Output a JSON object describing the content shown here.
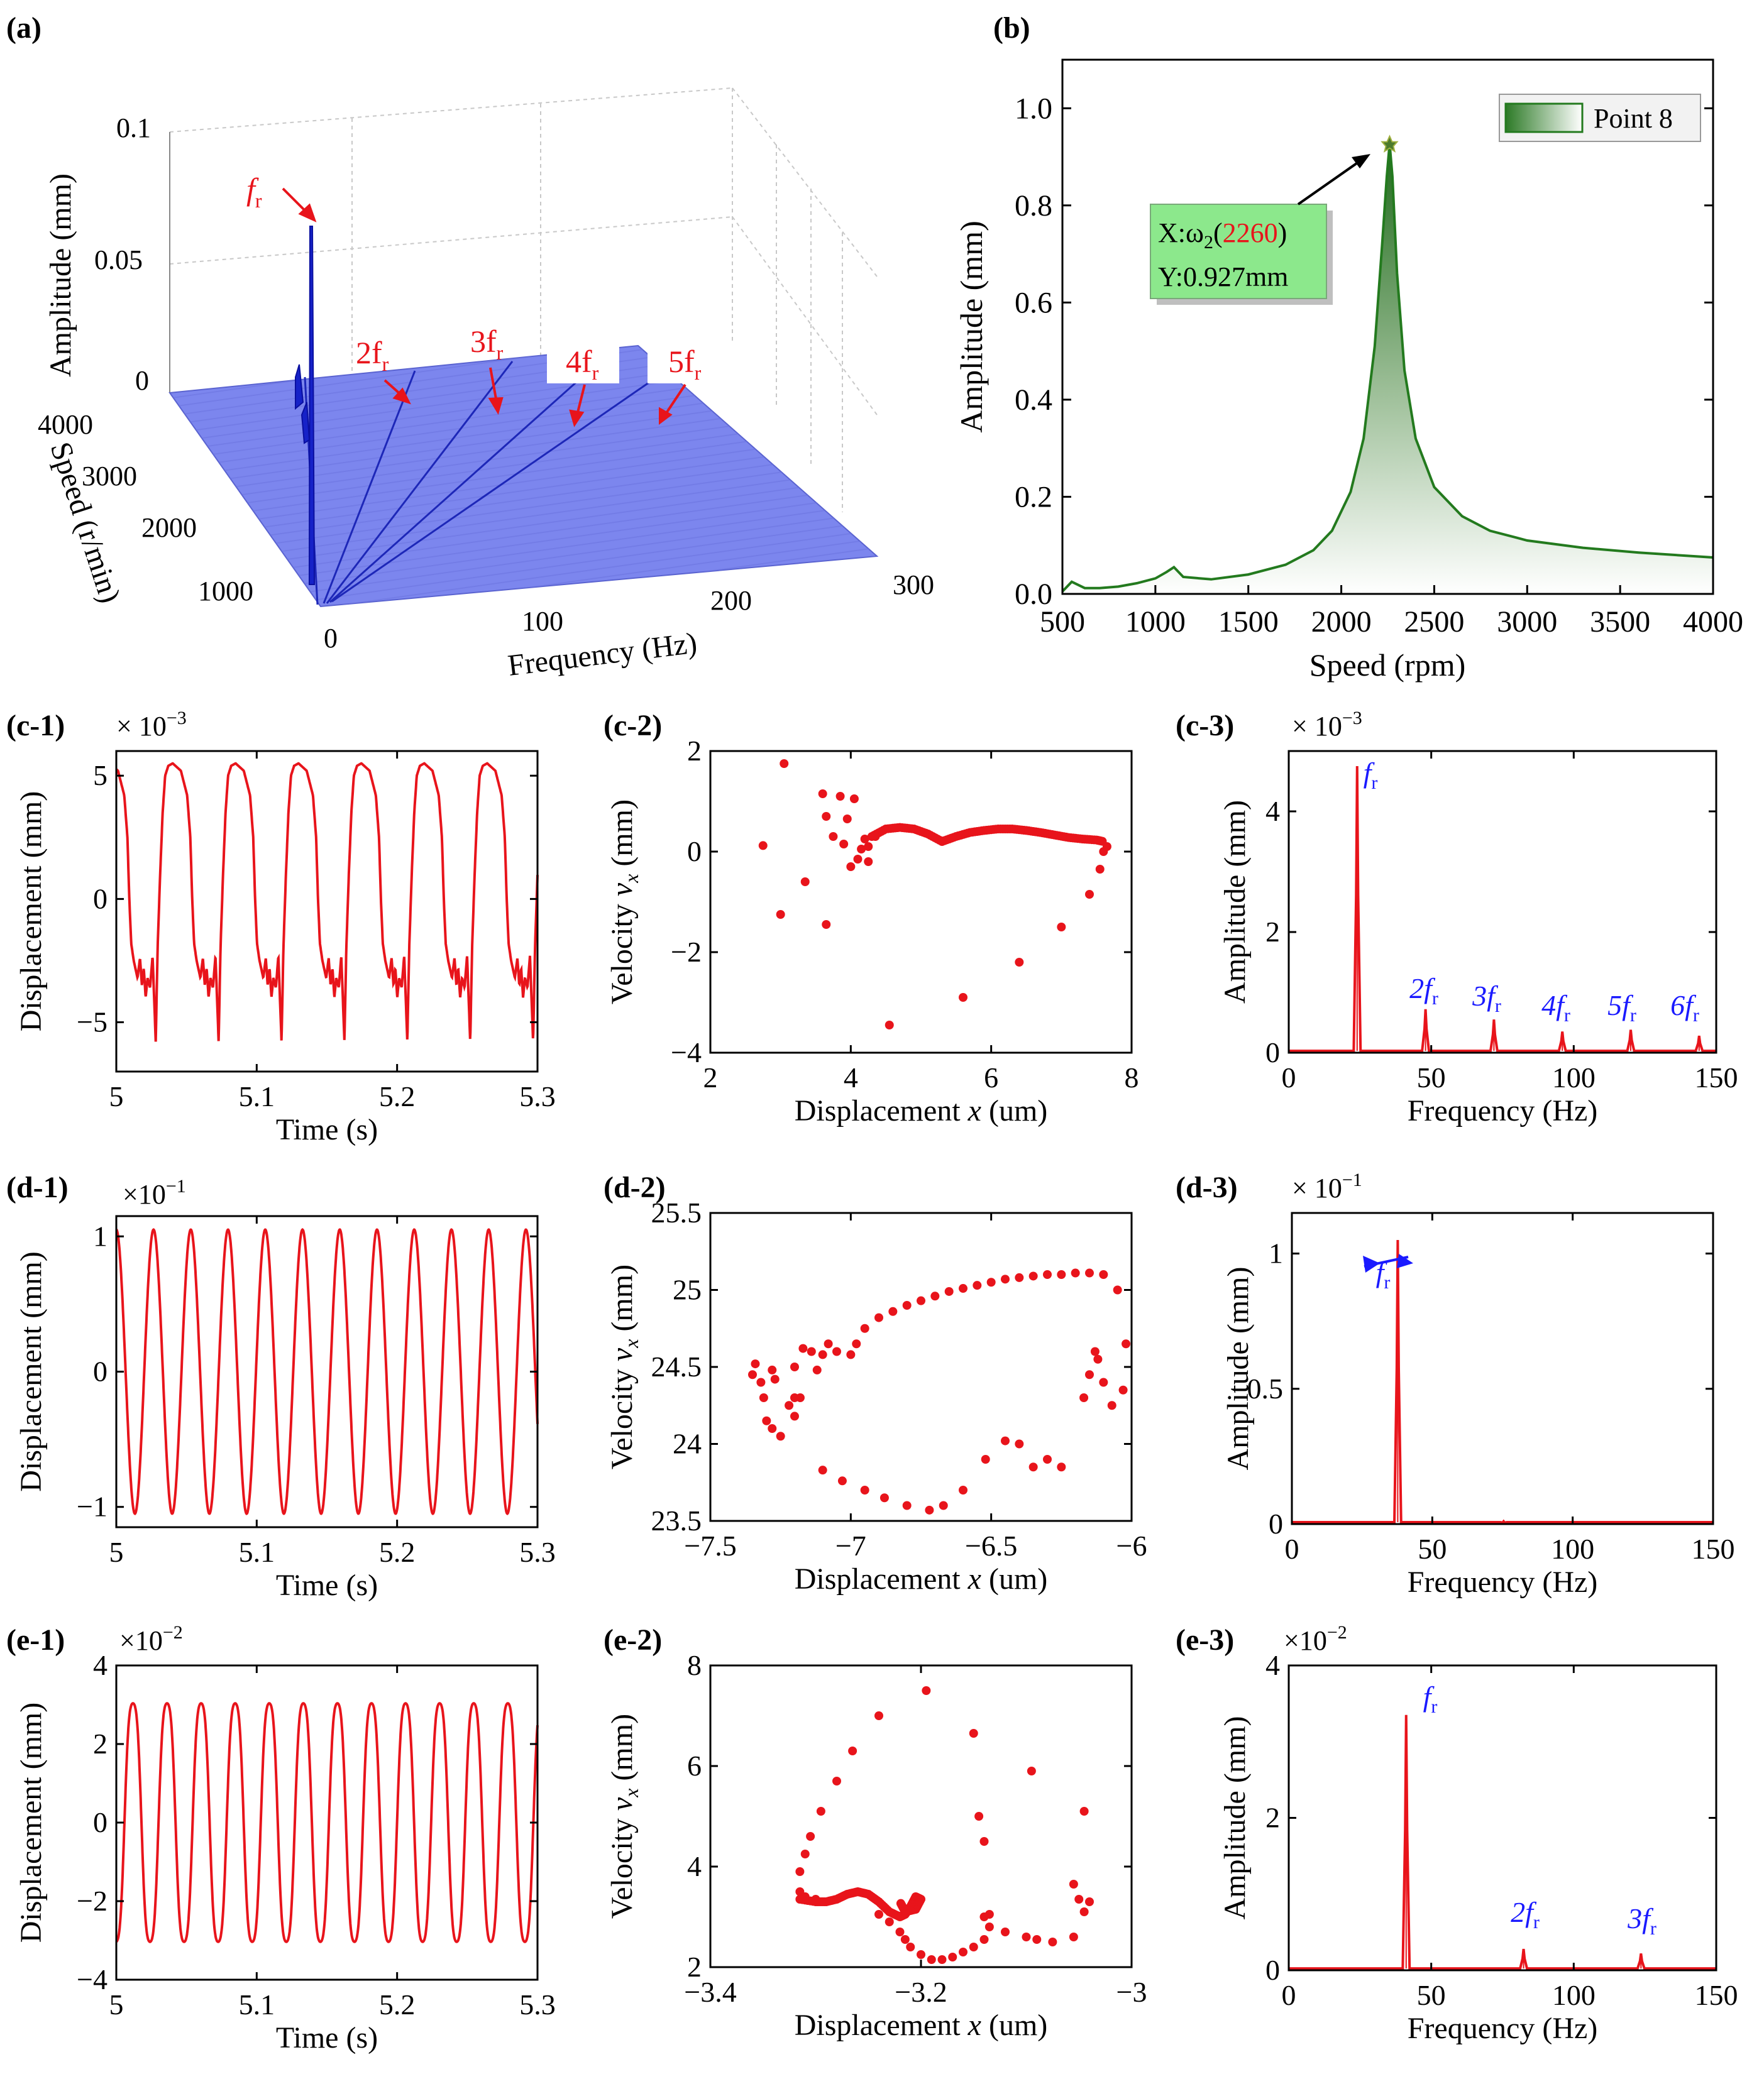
{
  "figure": {
    "panel_labels": {
      "a": "(a)",
      "b": "(b)",
      "c1": "(c-1)",
      "c2": "(c-2)",
      "c3": "(c-3)",
      "d1": "(d-1)",
      "d2": "(d-2)",
      "d3": "(d-3)",
      "e1": "(e-1)",
      "e2": "(e-2)",
      "e3": "(e-3)"
    },
    "colors": {
      "red": "#e8141b",
      "blue": "#1a1aff",
      "green": "#237a1e",
      "plane": "#7c86ee"
    }
  },
  "chart_data": [
    {
      "id": "a",
      "type": "waterfall-3d",
      "title": "",
      "zlabel": "Amplitude (mm)",
      "ylabel": "Speed (r/min)",
      "xlabel": "Frequency (Hz)",
      "ztick_labels": [
        "0",
        "0.05",
        "0.1"
      ],
      "ytick_labels": [
        "1000",
        "2000",
        "3000",
        "4000"
      ],
      "xtick_labels": [
        "0",
        "100",
        "200",
        "300"
      ],
      "xlim": [
        0,
        300
      ],
      "ylim": [
        500,
        4000
      ],
      "zlim": [
        0,
        0.1
      ],
      "peak": {
        "frequency_hz": 38,
        "speed_rpm": 2260,
        "amplitude_mm": 0.065
      },
      "orders": [
        1,
        2,
        3,
        4,
        5
      ],
      "annotations": [
        {
          "base": "f",
          "sub": "r"
        },
        {
          "base": "2f",
          "sub": "r"
        },
        {
          "base": "3f",
          "sub": "r"
        },
        {
          "base": "4f",
          "sub": "r"
        },
        {
          "base": "5f",
          "sub": "r"
        }
      ]
    },
    {
      "id": "b",
      "type": "area",
      "xlabel": "Speed (rpm)",
      "ylabel": "Amplitude (mm)",
      "xlim": [
        500,
        4000
      ],
      "ylim": [
        0,
        1.1
      ],
      "xticks": [
        500,
        1000,
        1500,
        2000,
        2500,
        3000,
        3500,
        4000
      ],
      "yticks": [
        0,
        0.2,
        0.4,
        0.6,
        0.8,
        1.0
      ],
      "ytick_labels": [
        "0.0",
        "0.2",
        "0.4",
        "0.6",
        "0.8",
        "1.0"
      ],
      "legend": "Point 8",
      "x": [
        500,
        550,
        620,
        700,
        800,
        900,
        1000,
        1060,
        1100,
        1150,
        1300,
        1500,
        1700,
        1850,
        1950,
        2050,
        2120,
        2180,
        2220,
        2245,
        2260,
        2275,
        2300,
        2340,
        2400,
        2500,
        2650,
        2800,
        3000,
        3300,
        3600,
        4000
      ],
      "y": [
        0.005,
        0.025,
        0.012,
        0.012,
        0.015,
        0.022,
        0.032,
        0.045,
        0.055,
        0.035,
        0.03,
        0.04,
        0.06,
        0.09,
        0.13,
        0.21,
        0.32,
        0.51,
        0.72,
        0.86,
        0.927,
        0.86,
        0.66,
        0.46,
        0.32,
        0.22,
        0.16,
        0.13,
        0.11,
        0.095,
        0.085,
        0.075
      ],
      "peak": {
        "x": 2260,
        "y": 0.927
      },
      "callout": {
        "x_prefix": "X:ω",
        "x_sub": "2",
        "x_open": "(",
        "x_value": "2260",
        "x_close": ")",
        "y_line": "Y:0.927mm"
      }
    },
    {
      "id": "c1",
      "type": "line",
      "xlabel": "Time (s)",
      "ylabel": "Displacement (mm)",
      "exponent_base": "× 10",
      "exponent_power": "−3",
      "xlim": [
        5,
        5.3
      ],
      "ylim": [
        -7,
        6
      ],
      "xticks": [
        5,
        5.1,
        5.2,
        5.3
      ],
      "xtick_labels": [
        "5",
        "5.1",
        "5.2",
        "5.3"
      ],
      "yticks": [
        -5,
        0,
        5
      ],
      "ytick_labels": [
        "−5",
        "0",
        "5"
      ],
      "period_s": 0.0448,
      "phase_s": 0.01,
      "waveform_phase": [
        0,
        0.05,
        0.12,
        0.25,
        0.35,
        0.4,
        0.43,
        0.46,
        0.5,
        0.56,
        0.6,
        0.63,
        0.66,
        0.69,
        0.72,
        0.76,
        0.8,
        0.85,
        0.88,
        0.92,
        0.96,
        1.0
      ],
      "waveform_value": [
        5.0,
        5.4,
        5.5,
        5.2,
        4.2,
        2.5,
        0.0,
        -1.8,
        -2.5,
        -3.2,
        -2.4,
        -3.5,
        -2.8,
        -4.0,
        -3.2,
        -3.6,
        -2.3,
        -5.8,
        -2.0,
        1.0,
        3.5,
        5.0
      ]
    },
    {
      "id": "c2",
      "type": "scatter",
      "xlabel_text": "Displacement ",
      "xlabel_italic": "x",
      "xlabel_unit": " (um)",
      "ylabel_text": "Velocity ",
      "ylabel_italic": "v",
      "ylabel_sub": "x",
      "ylabel_unit": " (mm)",
      "xlim": [
        2,
        8
      ],
      "ylim": [
        -4,
        2
      ],
      "xticks": [
        2,
        4,
        6,
        8
      ],
      "xtick_labels": [
        "2",
        "4",
        "6",
        "8"
      ],
      "yticks": [
        -4,
        -2,
        0,
        2
      ],
      "ytick_labels": [
        "−4",
        "−2",
        "0",
        "2"
      ],
      "points": [
        [
          3.05,
          1.75
        ],
        [
          3.6,
          1.15
        ],
        [
          3.85,
          1.1
        ],
        [
          4.05,
          1.05
        ],
        [
          2.75,
          0.12
        ],
        [
          3.0,
          -1.25
        ],
        [
          3.35,
          -0.6
        ],
        [
          3.65,
          -1.45
        ],
        [
          3.65,
          0.7
        ],
        [
          3.75,
          0.3
        ],
        [
          3.9,
          0.15
        ],
        [
          3.95,
          0.65
        ],
        [
          4.0,
          -0.3
        ],
        [
          4.1,
          -0.15
        ],
        [
          4.15,
          0.05
        ],
        [
          4.2,
          0.25
        ],
        [
          4.25,
          0.1
        ],
        [
          4.35,
          0.3
        ],
        [
          4.25,
          -0.2
        ],
        [
          4.55,
          -3.45
        ],
        [
          5.6,
          -2.9
        ],
        [
          6.4,
          -2.2
        ],
        [
          7.0,
          -1.5
        ],
        [
          7.4,
          -0.85
        ],
        [
          7.55,
          -0.35
        ],
        [
          7.6,
          0.0
        ],
        [
          7.65,
          0.1
        ]
      ],
      "curve_x": [
        4.3,
        4.5,
        4.7,
        4.9,
        5.1,
        5.3,
        5.5,
        5.7,
        5.9,
        6.1,
        6.3,
        6.5,
        6.7,
        6.9,
        7.1,
        7.3,
        7.5,
        7.6
      ],
      "curve_y": [
        0.3,
        0.45,
        0.48,
        0.45,
        0.35,
        0.2,
        0.3,
        0.38,
        0.42,
        0.45,
        0.45,
        0.42,
        0.38,
        0.33,
        0.28,
        0.25,
        0.23,
        0.2
      ]
    },
    {
      "id": "c3",
      "type": "spectrum",
      "xlabel": "Frequency (Hz)",
      "ylabel": "Amplitude (mm)",
      "exponent_base": "× 10",
      "exponent_power": "−3",
      "xlim": [
        0,
        150
      ],
      "ylim": [
        0,
        5
      ],
      "xticks": [
        0,
        50,
        100,
        150
      ],
      "xtick_labels": [
        "0",
        "50",
        "100",
        "150"
      ],
      "yticks": [
        0,
        2,
        4
      ],
      "ytick_labels": [
        "0",
        "2",
        "4"
      ],
      "peaks_hz": [
        24,
        48,
        72,
        96,
        120,
        144
      ],
      "peaks_amp": [
        4.75,
        0.72,
        0.55,
        0.35,
        0.38,
        0.28
      ],
      "labels": [
        {
          "base": "f",
          "sub": "r"
        },
        {
          "base": "2f",
          "sub": "r"
        },
        {
          "base": "3f",
          "sub": "r"
        },
        {
          "base": "4f",
          "sub": "r"
        },
        {
          "base": "5f",
          "sub": "r"
        },
        {
          "base": "6f",
          "sub": "r"
        }
      ]
    },
    {
      "id": "d1",
      "type": "line",
      "xlabel": "Time (s)",
      "ylabel": "Displacement (mm)",
      "exponent_base": "×10",
      "exponent_power": "−1",
      "xlim": [
        5,
        5.3
      ],
      "ylim": [
        -1.15,
        1.15
      ],
      "xticks": [
        5,
        5.1,
        5.2,
        5.3
      ],
      "xtick_labels": [
        "5",
        "5.1",
        "5.2",
        "5.3"
      ],
      "yticks": [
        -1,
        0,
        1
      ],
      "ytick_labels": [
        "−1",
        "0",
        "1"
      ],
      "frequency_hz": 37.7,
      "amplitude": 1.05
    },
    {
      "id": "d2",
      "type": "scatter",
      "xlabel_text": "Displacement ",
      "xlabel_italic": "x",
      "xlabel_unit": " (um)",
      "ylabel_text": "Velocity ",
      "ylabel_italic": "v",
      "ylabel_sub": "x",
      "ylabel_unit": " (mm)",
      "xlim": [
        -7.5,
        -6
      ],
      "ylim": [
        23.5,
        25.5
      ],
      "xticks": [
        -7.5,
        -7,
        -6.5,
        -6
      ],
      "xtick_labels": [
        "−7.5",
        "−7",
        "−6.5",
        "−6"
      ],
      "yticks": [
        23.5,
        24,
        24.5,
        25,
        25.5
      ],
      "ytick_labels": [
        "23.5",
        "24",
        "24.5",
        "25",
        "25.5"
      ],
      "points": [
        [
          -7.35,
          24.45
        ],
        [
          -7.34,
          24.52
        ],
        [
          -7.32,
          24.4
        ],
        [
          -7.31,
          24.3
        ],
        [
          -7.3,
          24.15
        ],
        [
          -7.28,
          24.1
        ],
        [
          -7.25,
          24.05
        ],
        [
          -7.2,
          24.18
        ],
        [
          -7.18,
          24.3
        ],
        [
          -7.2,
          24.5
        ],
        [
          -7.17,
          24.62
        ],
        [
          -7.14,
          24.6
        ],
        [
          -7.12,
          24.48
        ],
        [
          -7.1,
          24.58
        ],
        [
          -7.08,
          24.65
        ],
        [
          -7.05,
          24.6
        ],
        [
          -7.0,
          24.58
        ],
        [
          -6.98,
          24.65
        ],
        [
          -6.95,
          24.75
        ],
        [
          -6.9,
          24.82
        ],
        [
          -6.85,
          24.86
        ],
        [
          -6.8,
          24.9
        ],
        [
          -6.75,
          24.93
        ],
        [
          -6.7,
          24.96
        ],
        [
          -6.65,
          24.99
        ],
        [
          -6.6,
          25.01
        ],
        [
          -6.55,
          25.03
        ],
        [
          -6.5,
          25.05
        ],
        [
          -6.45,
          25.07
        ],
        [
          -6.4,
          25.08
        ],
        [
          -6.35,
          25.09
        ],
        [
          -6.3,
          25.1
        ],
        [
          -6.25,
          25.1
        ],
        [
          -6.2,
          25.11
        ],
        [
          -6.15,
          25.11
        ],
        [
          -6.1,
          25.1
        ],
        [
          -6.05,
          25.0
        ],
        [
          -6.02,
          24.65
        ],
        [
          -6.03,
          24.35
        ],
        [
          -6.07,
          24.25
        ],
        [
          -6.1,
          24.4
        ],
        [
          -6.12,
          24.55
        ],
        [
          -6.13,
          24.6
        ],
        [
          -6.15,
          24.45
        ],
        [
          -6.17,
          24.3
        ],
        [
          -6.25,
          23.85
        ],
        [
          -6.3,
          23.9
        ],
        [
          -6.35,
          23.85
        ],
        [
          -6.4,
          24.0
        ],
        [
          -6.45,
          24.02
        ],
        [
          -6.52,
          23.9
        ],
        [
          -6.6,
          23.7
        ],
        [
          -6.67,
          23.6
        ],
        [
          -6.72,
          23.57
        ],
        [
          -6.8,
          23.6
        ],
        [
          -6.88,
          23.65
        ],
        [
          -6.95,
          23.7
        ],
        [
          -7.03,
          23.76
        ],
        [
          -7.1,
          23.83
        ],
        [
          -7.2,
          24.3
        ],
        [
          -7.22,
          24.25
        ],
        [
          -7.27,
          24.42
        ],
        [
          -7.28,
          24.48
        ]
      ]
    },
    {
      "id": "d3",
      "type": "spectrum",
      "xlabel": "Frequency (Hz)",
      "ylabel": "Amplitude (mm)",
      "exponent_base": "× 10",
      "exponent_power": "−1",
      "xlim": [
        0,
        150
      ],
      "ylim": [
        0,
        1.15
      ],
      "xticks": [
        0,
        50,
        100,
        150
      ],
      "xtick_labels": [
        "0",
        "50",
        "100",
        "150"
      ],
      "yticks": [
        0,
        0.5,
        1
      ],
      "ytick_labels": [
        "0",
        "0.5",
        "1"
      ],
      "peaks_hz": [
        37.7,
        75.4
      ],
      "peaks_amp": [
        1.05,
        0.01
      ],
      "labels": [
        {
          "base": "f",
          "sub": "r"
        }
      ]
    },
    {
      "id": "e1",
      "type": "line",
      "xlabel": "Time (s)",
      "ylabel": "Displacement (mm)",
      "exponent_base": "×10",
      "exponent_power": "−2",
      "xlim": [
        5,
        5.3
      ],
      "ylim": [
        -4,
        4
      ],
      "xticks": [
        5,
        5.1,
        5.2,
        5.3
      ],
      "xtick_labels": [
        "5",
        "5.1",
        "5.2",
        "5.3"
      ],
      "yticks": [
        -4,
        -2,
        0,
        2,
        4
      ],
      "ytick_labels": [
        "−4",
        "−2",
        "0",
        "2",
        "4"
      ],
      "frequency_hz": 41.2,
      "amplitude": 3.3
    },
    {
      "id": "e2",
      "type": "scatter",
      "xlabel_text": "Displacement ",
      "xlabel_italic": "x",
      "xlabel_unit": " (um)",
      "ylabel_text": "Velocity ",
      "ylabel_italic": "v",
      "ylabel_sub": "x",
      "ylabel_unit": " (mm)",
      "xlim": [
        -3.4,
        -3.0
      ],
      "ylim": [
        2,
        8
      ],
      "xticks": [
        -3.4,
        -3.2,
        -3.0
      ],
      "xtick_labels": [
        "−3.4",
        "−3.2",
        "−3"
      ],
      "yticks": [
        2,
        4,
        6,
        8
      ],
      "ytick_labels": [
        "2",
        "4",
        "6",
        "8"
      ],
      "points": [
        [
          -3.195,
          7.5
        ],
        [
          -3.24,
          7.0
        ],
        [
          -3.265,
          6.3
        ],
        [
          -3.28,
          5.7
        ],
        [
          -3.295,
          5.1
        ],
        [
          -3.305,
          4.6
        ],
        [
          -3.31,
          4.25
        ],
        [
          -3.315,
          3.9
        ],
        [
          -3.315,
          3.5
        ],
        [
          -3.31,
          3.4
        ],
        [
          -3.3,
          3.35
        ],
        [
          -3.15,
          6.65
        ],
        [
          -3.095,
          5.9
        ],
        [
          -3.045,
          5.1
        ],
        [
          -3.145,
          5.0
        ],
        [
          -3.14,
          4.5
        ],
        [
          -3.055,
          3.65
        ],
        [
          -3.05,
          3.35
        ],
        [
          -3.04,
          3.3
        ],
        [
          -3.045,
          3.1
        ],
        [
          -3.055,
          2.6
        ],
        [
          -3.075,
          2.5
        ],
        [
          -3.09,
          2.55
        ],
        [
          -3.1,
          2.6
        ],
        [
          -3.12,
          2.7
        ],
        [
          -3.135,
          2.8
        ],
        [
          -3.14,
          3.0
        ],
        [
          -3.135,
          3.05
        ],
        [
          -3.14,
          2.55
        ],
        [
          -3.15,
          2.4
        ],
        [
          -3.16,
          2.3
        ],
        [
          -3.17,
          2.2
        ],
        [
          -3.18,
          2.15
        ],
        [
          -3.19,
          2.15
        ],
        [
          -3.2,
          2.25
        ],
        [
          -3.21,
          2.4
        ],
        [
          -3.215,
          2.55
        ],
        [
          -3.22,
          2.7
        ],
        [
          -3.23,
          2.9
        ],
        [
          -3.24,
          3.05
        ]
      ],
      "curve_x": [
        -3.315,
        -3.3,
        -3.29,
        -3.28,
        -3.27,
        -3.26,
        -3.25,
        -3.24,
        -3.23,
        -3.22,
        -3.215,
        -3.21,
        -3.205,
        -3.2,
        -3.205,
        -3.215,
        -3.22
      ],
      "curve_y": [
        3.35,
        3.3,
        3.3,
        3.35,
        3.45,
        3.5,
        3.45,
        3.3,
        3.1,
        3.0,
        3.05,
        3.2,
        3.4,
        3.35,
        3.15,
        3.1,
        3.3
      ]
    },
    {
      "id": "e3",
      "type": "spectrum",
      "xlabel": "Frequency (Hz)",
      "ylabel": "Amplitude (mm)",
      "exponent_base": "×10",
      "exponent_power": "−2",
      "xlim": [
        0,
        150
      ],
      "ylim": [
        0,
        4
      ],
      "xticks": [
        0,
        50,
        100,
        150
      ],
      "xtick_labels": [
        "0",
        "50",
        "100",
        "150"
      ],
      "yticks": [
        0,
        2,
        4
      ],
      "ytick_labels": [
        "0",
        "2",
        "4"
      ],
      "peaks_hz": [
        41.2,
        82.4,
        123.6
      ],
      "peaks_amp": [
        3.35,
        0.28,
        0.22
      ],
      "labels": [
        {
          "base": "f",
          "sub": "r"
        },
        {
          "base": "2f",
          "sub": "r"
        },
        {
          "base": "3f",
          "sub": "r"
        }
      ]
    }
  ]
}
